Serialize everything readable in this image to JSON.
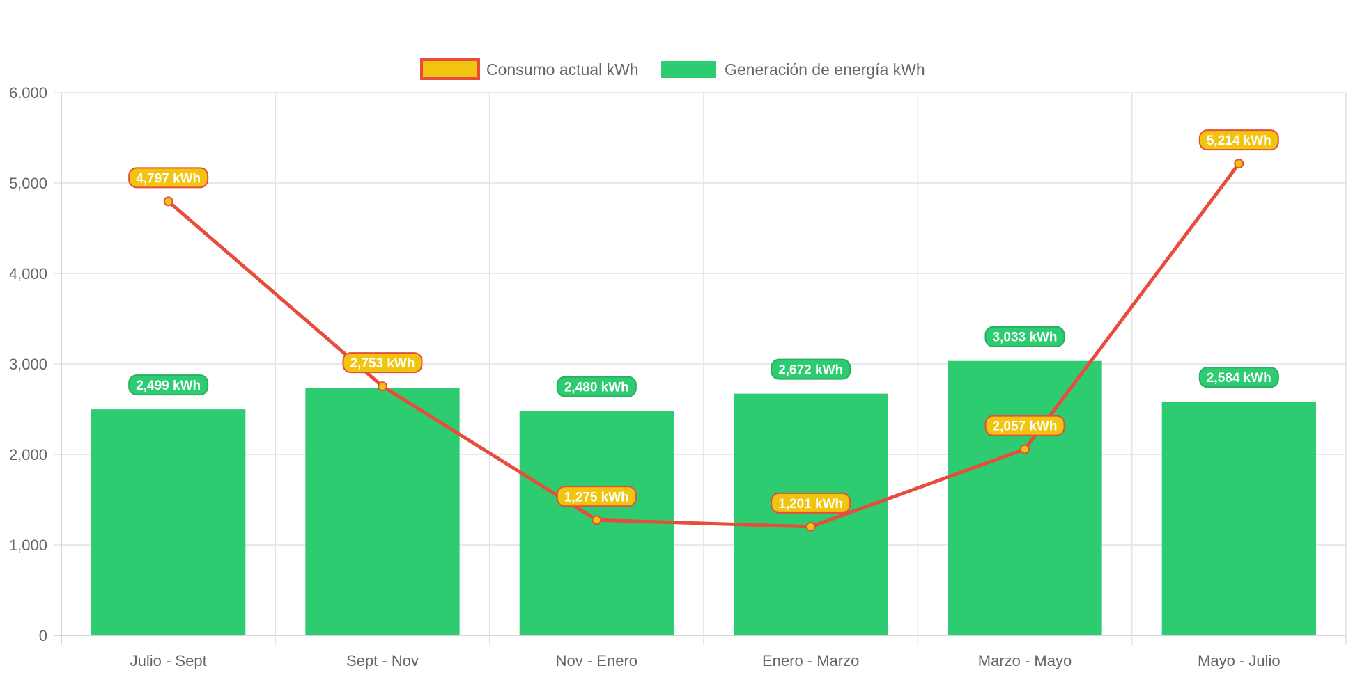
{
  "chart_data": {
    "type": "bar",
    "categories": [
      "Julio - Sept",
      "Sept - Nov",
      "Nov - Enero",
      "Enero - Marzo",
      "Marzo - Mayo",
      "Mayo - Julio"
    ],
    "series": [
      {
        "name": "Consumo actual kWh",
        "type": "line",
        "values": [
          4797,
          2753,
          1275,
          1201,
          2057,
          5214
        ],
        "labels": [
          "4,797 kWh",
          "2,753 kWh",
          "1,275 kWh",
          "1,201 kWh",
          "2,057 kWh",
          "5,214 kWh"
        ],
        "color": "#e74c3c",
        "fill": "#f1c40f"
      },
      {
        "name": "Generación de energía kWh",
        "type": "bar",
        "values": [
          2499,
          2736,
          2480,
          2672,
          3033,
          2584
        ],
        "labels": [
          "2,499 kWh",
          "",
          "2,480 kWh",
          "2,672 kWh",
          "3,033 kWh",
          "2,584 kWh"
        ],
        "color": "#2ecc71"
      }
    ],
    "ylim": [
      0,
      6000
    ],
    "yticks": [
      "0",
      "1,000",
      "2,000",
      "3,000",
      "4,000",
      "5,000",
      "6,000"
    ],
    "grid": true,
    "legend_position": "top-center",
    "title": "",
    "xlabel": "",
    "ylabel": ""
  }
}
